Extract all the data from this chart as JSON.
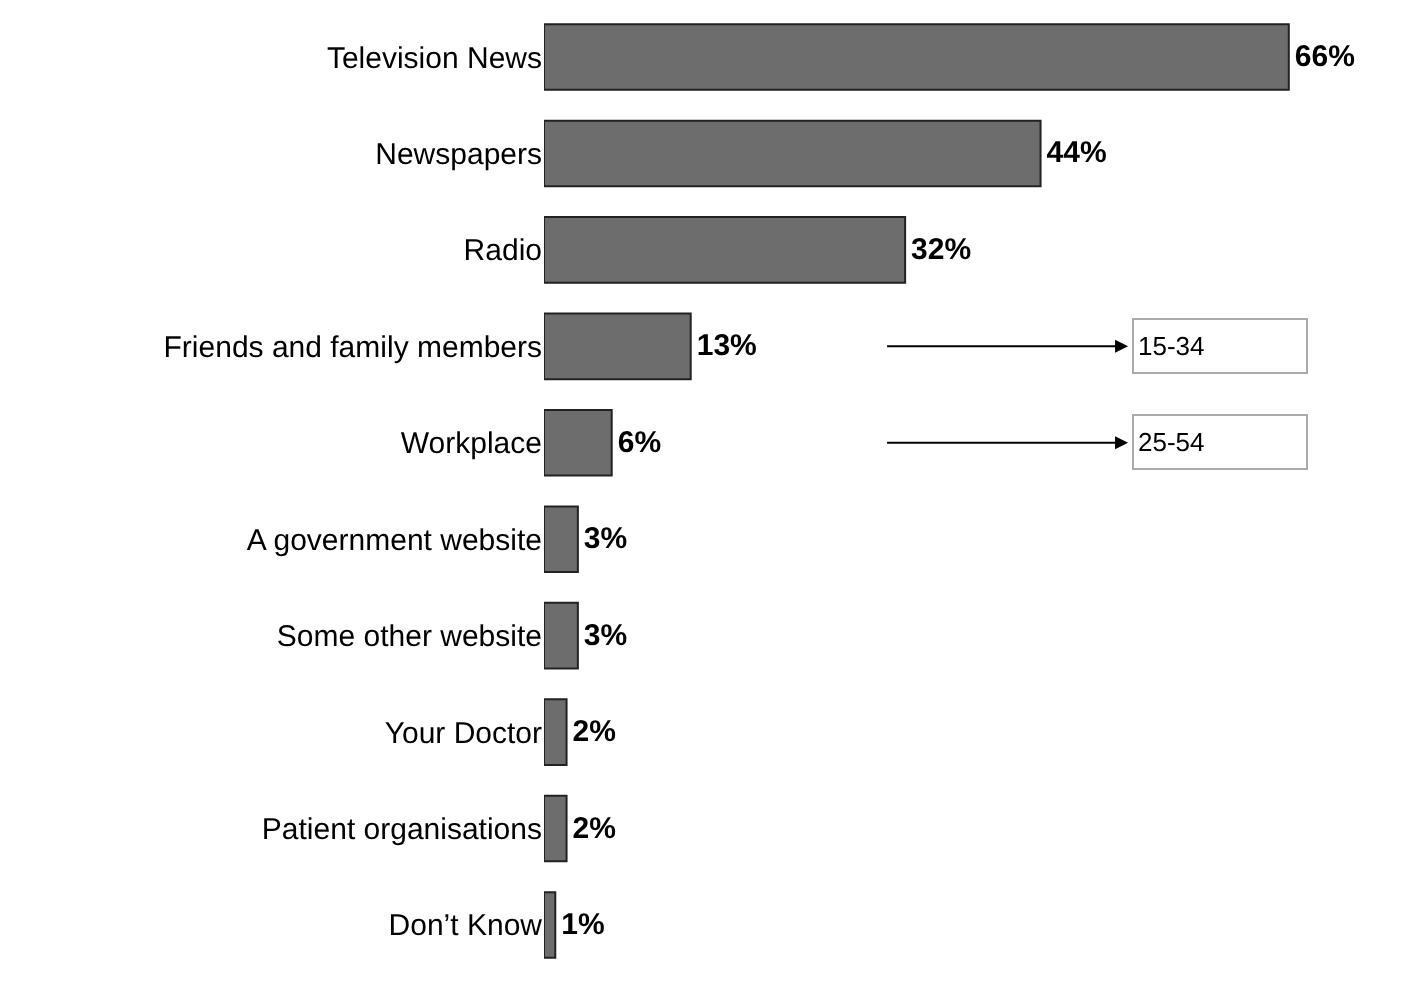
{
  "chart_data": {
    "type": "bar",
    "orientation": "horizontal",
    "categories": [
      "Television News",
      "Newspapers",
      "Radio",
      "Friends and family members",
      "Workplace",
      "A government website",
      "Some other website",
      "Your Doctor",
      "Patient organisations",
      "Don’t Know"
    ],
    "values": [
      66,
      44,
      32,
      13,
      6,
      3,
      3,
      2,
      2,
      1
    ],
    "value_labels": [
      "66%",
      "44%",
      "32%",
      "13%",
      "6%",
      "3%",
      "3%",
      "2%",
      "2%",
      "1%"
    ],
    "color": "#6d6d6d",
    "tick_labels": "y",
    "annotations": [
      "15-34",
      "25-54"
    ]
  }
}
